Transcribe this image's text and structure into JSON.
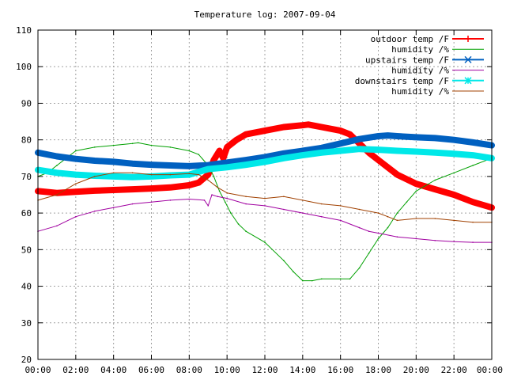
{
  "chart_data": {
    "type": "line",
    "title": "Temperature log: 2007-09-04",
    "xlabel": "",
    "ylabel": "",
    "xlim": [
      0,
      24
    ],
    "ylim": [
      20,
      110
    ],
    "grid": true,
    "legend_position": "top-right",
    "x_ticks": [
      "00:00",
      "02:00",
      "04:00",
      "06:00",
      "08:00",
      "10:00",
      "12:00",
      "14:00",
      "16:00",
      "18:00",
      "20:00",
      "22:00",
      "00:00"
    ],
    "y_ticks": [
      "20",
      "30",
      "40",
      "50",
      "60",
      "70",
      "80",
      "90",
      "100",
      "110"
    ],
    "series": [
      {
        "name": "outdoor temp /F",
        "color": "#ff0000",
        "marker": "plus",
        "points": [
          [
            0,
            66
          ],
          [
            1,
            65.5
          ],
          [
            2,
            65.8
          ],
          [
            3,
            66.1
          ],
          [
            4,
            66.3
          ],
          [
            5,
            66.5
          ],
          [
            6,
            66.7
          ],
          [
            7,
            67
          ],
          [
            8,
            67.6
          ],
          [
            8.5,
            68.3
          ],
          [
            9,
            70.5
          ],
          [
            9.3,
            74.5
          ],
          [
            9.6,
            77
          ],
          [
            9.8,
            75
          ],
          [
            10,
            78
          ],
          [
            10.5,
            80
          ],
          [
            11,
            81.5
          ],
          [
            12,
            82.5
          ],
          [
            13,
            83.5
          ],
          [
            14,
            84
          ],
          [
            14.3,
            84.2
          ],
          [
            15,
            83.5
          ],
          [
            16,
            82.5
          ],
          [
            16.5,
            81.5
          ],
          [
            17,
            79
          ],
          [
            17.5,
            76.5
          ],
          [
            18,
            74.5
          ],
          [
            19,
            70.5
          ],
          [
            20,
            68
          ],
          [
            21,
            66.5
          ],
          [
            22,
            65
          ],
          [
            23,
            63
          ],
          [
            24,
            61.5
          ]
        ]
      },
      {
        "name": "humidity /%",
        "color": "#00a000",
        "marker": "none",
        "points": [
          [
            0,
            70
          ],
          [
            0.5,
            71
          ],
          [
            1,
            73
          ],
          [
            1.5,
            75
          ],
          [
            2,
            77
          ],
          [
            3,
            78
          ],
          [
            4,
            78.5
          ],
          [
            5,
            79
          ],
          [
            5.3,
            79.2
          ],
          [
            6,
            78.5
          ],
          [
            7,
            78
          ],
          [
            8,
            77
          ],
          [
            8.5,
            76
          ],
          [
            9,
            73
          ],
          [
            9.3,
            70
          ],
          [
            9.6,
            66
          ],
          [
            9.9,
            63
          ],
          [
            10.2,
            60
          ],
          [
            10.6,
            57
          ],
          [
            11,
            55
          ],
          [
            12,
            52
          ],
          [
            13,
            47
          ],
          [
            13.5,
            44
          ],
          [
            14,
            41.5
          ],
          [
            14.5,
            41.5
          ],
          [
            15,
            42
          ],
          [
            16,
            42
          ],
          [
            16.5,
            42
          ],
          [
            17,
            45
          ],
          [
            17.5,
            49
          ],
          [
            18,
            53
          ],
          [
            18.5,
            56
          ],
          [
            19,
            60
          ],
          [
            19.5,
            63
          ],
          [
            20,
            66
          ],
          [
            21,
            69
          ],
          [
            22,
            71
          ],
          [
            23,
            73
          ],
          [
            24,
            75
          ]
        ]
      },
      {
        "name": "upstairs temp /F",
        "color": "#0060c0",
        "marker": "x",
        "points": [
          [
            0,
            76.5
          ],
          [
            1,
            75.5
          ],
          [
            2,
            74.8
          ],
          [
            3,
            74.3
          ],
          [
            4,
            74
          ],
          [
            5,
            73.5
          ],
          [
            6,
            73.2
          ],
          [
            7,
            73
          ],
          [
            8,
            72.8
          ],
          [
            9,
            73.1
          ],
          [
            10,
            73.8
          ],
          [
            11,
            74.5
          ],
          [
            12,
            75.3
          ],
          [
            13,
            76.3
          ],
          [
            14,
            77
          ],
          [
            15,
            77.8
          ],
          [
            16,
            79
          ],
          [
            17,
            80.2
          ],
          [
            18,
            81
          ],
          [
            18.5,
            81.2
          ],
          [
            19,
            81
          ],
          [
            20,
            80.7
          ],
          [
            21,
            80.5
          ],
          [
            22,
            80
          ],
          [
            23,
            79.3
          ],
          [
            24,
            78.5
          ]
        ]
      },
      {
        "name": "humidity /%",
        "color": "#a000a0",
        "marker": "none",
        "points": [
          [
            0,
            55
          ],
          [
            1,
            56.5
          ],
          [
            2,
            59
          ],
          [
            3,
            60.5
          ],
          [
            4,
            61.5
          ],
          [
            5,
            62.5
          ],
          [
            6,
            63
          ],
          [
            7,
            63.5
          ],
          [
            8,
            63.8
          ],
          [
            8.8,
            63.5
          ],
          [
            9,
            62
          ],
          [
            9.2,
            65
          ],
          [
            9.5,
            64.5
          ],
          [
            10,
            64
          ],
          [
            11,
            62.5
          ],
          [
            12,
            62
          ],
          [
            13,
            61
          ],
          [
            14,
            60
          ],
          [
            15,
            59
          ],
          [
            16,
            58
          ],
          [
            17,
            56
          ],
          [
            17.5,
            55
          ],
          [
            18,
            54.5
          ],
          [
            19,
            53.5
          ],
          [
            20,
            53
          ],
          [
            21,
            52.5
          ],
          [
            22,
            52.2
          ],
          [
            23,
            52
          ],
          [
            24,
            52
          ]
        ]
      },
      {
        "name": "downstairs temp /F",
        "color": "#00e8e8",
        "marker": "star",
        "points": [
          [
            0,
            71.8
          ],
          [
            1,
            71
          ],
          [
            2,
            70.5
          ],
          [
            3,
            70.2
          ],
          [
            4,
            70
          ],
          [
            5,
            69.8
          ],
          [
            6,
            70
          ],
          [
            7,
            70.3
          ],
          [
            8,
            70.5
          ],
          [
            9,
            72
          ],
          [
            10,
            72.5
          ],
          [
            11,
            73.2
          ],
          [
            12,
            74
          ],
          [
            13,
            75
          ],
          [
            14,
            75.8
          ],
          [
            15,
            76.5
          ],
          [
            16,
            77
          ],
          [
            17,
            77.5
          ],
          [
            18,
            77.3
          ],
          [
            19,
            77
          ],
          [
            20,
            76.8
          ],
          [
            21,
            76.5
          ],
          [
            22,
            76.2
          ],
          [
            23,
            75.8
          ],
          [
            24,
            75
          ]
        ]
      },
      {
        "name": "humidity /%",
        "color": "#a04000",
        "marker": "none",
        "points": [
          [
            0,
            63.5
          ],
          [
            1,
            65
          ],
          [
            2,
            68
          ],
          [
            3,
            70
          ],
          [
            4,
            71
          ],
          [
            5,
            71
          ],
          [
            6,
            70.5
          ],
          [
            7,
            70.5
          ],
          [
            8,
            70.8
          ],
          [
            8.5,
            70.5
          ],
          [
            9,
            69
          ],
          [
            9.5,
            67
          ],
          [
            10,
            65.5
          ],
          [
            11,
            64.5
          ],
          [
            12,
            64
          ],
          [
            13,
            64.5
          ],
          [
            14,
            63.5
          ],
          [
            15,
            62.5
          ],
          [
            16,
            62
          ],
          [
            17,
            61
          ],
          [
            18,
            60
          ],
          [
            18.5,
            59
          ],
          [
            19,
            58
          ],
          [
            20,
            58.5
          ],
          [
            21,
            58.5
          ],
          [
            22,
            58
          ],
          [
            23,
            57.5
          ],
          [
            24,
            57.5
          ]
        ]
      }
    ]
  }
}
